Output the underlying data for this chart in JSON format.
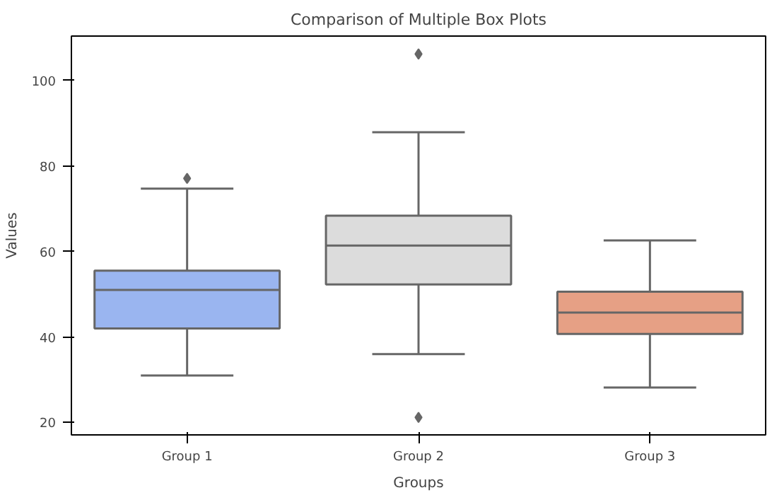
{
  "chart_data": {
    "type": "box",
    "title": "Comparison of Multiple Box Plots",
    "xlabel": "Groups",
    "ylabel": "Values",
    "categories": [
      "Group 1",
      "Group 2",
      "Group 3"
    ],
    "colors": [
      "#9ab5f0",
      "#dcdcdc",
      "#e6a085"
    ],
    "boxes": [
      {
        "low": 31.0,
        "q1": 42.0,
        "median": 51.0,
        "q3": 55.5,
        "high": 74.7,
        "outliers": [
          77.1
        ]
      },
      {
        "low": 36.0,
        "q1": 52.3,
        "median": 61.4,
        "q3": 68.4,
        "high": 87.9,
        "outliers": [
          106.2,
          21.2
        ]
      },
      {
        "low": 28.2,
        "q1": 40.7,
        "median": 45.7,
        "q3": 50.6,
        "high": 62.6
      }
    ],
    "ylim": [
      17.1,
      110.4
    ],
    "yticks": [
      20,
      40,
      60,
      80,
      100
    ],
    "marker": "diamond",
    "grid": false
  }
}
